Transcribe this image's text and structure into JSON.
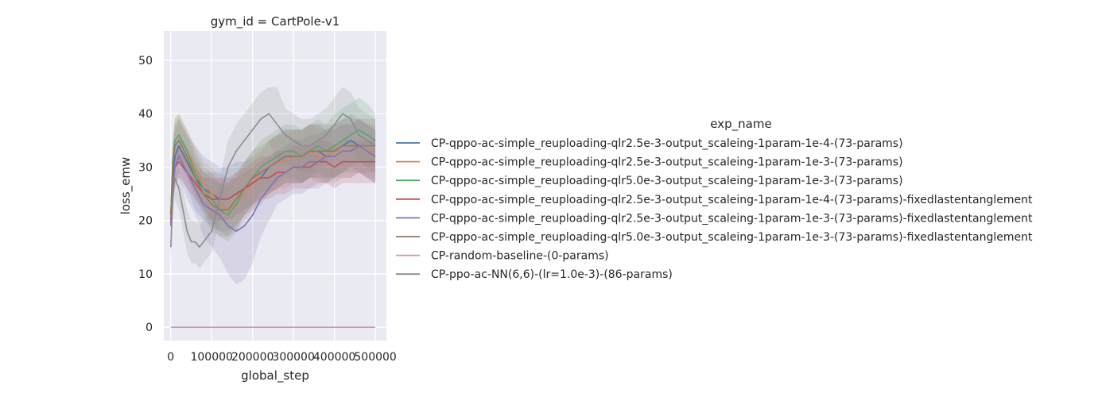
{
  "chart_data": {
    "type": "line",
    "title": "gym_id = CartPole-v1",
    "xlabel": "global_step",
    "ylabel": "loss_emw",
    "xlim": [
      -17000,
      527000
    ],
    "ylim": [
      -2.5,
      55.5
    ],
    "x_ticks": [
      0,
      100000,
      200000,
      300000,
      400000,
      500000
    ],
    "y_ticks": [
      0,
      10,
      20,
      30,
      40,
      50
    ],
    "grid": true,
    "legend": {
      "title": "exp_name",
      "position": "right"
    },
    "series": [
      {
        "name": "CP-qppo-ac-simple_reuploading-qlr2.5e-3-output_scaleing-1param-1e-4-(73-params)",
        "color": "#4c72b0",
        "x": [
          0,
          5000,
          10000,
          20000,
          40000,
          60000,
          80000,
          100000,
          120000,
          140000,
          160000,
          180000,
          200000,
          220000,
          240000,
          260000,
          280000,
          300000,
          320000,
          340000,
          360000,
          380000,
          400000,
          420000,
          440000,
          460000,
          480000,
          500000
        ],
        "values": [
          19,
          28,
          32,
          34,
          31,
          28,
          26,
          25,
          24,
          24,
          25,
          26,
          27,
          28,
          30,
          31,
          32,
          32,
          32,
          33,
          33,
          32,
          33,
          34,
          35,
          34,
          33,
          32
        ],
        "band": [
          5,
          5,
          5,
          5,
          5,
          6,
          6,
          6,
          6,
          6,
          6,
          5,
          5,
          5,
          5,
          5,
          5,
          5,
          5,
          5,
          5,
          5,
          5,
          5,
          5,
          5,
          5,
          5
        ]
      },
      {
        "name": "CP-qppo-ac-simple_reuploading-qlr2.5e-3-output_scaleing-1param-1e-3-(73-params)",
        "color": "#dd8452",
        "x": [
          0,
          5000,
          10000,
          20000,
          40000,
          60000,
          80000,
          100000,
          120000,
          140000,
          160000,
          180000,
          200000,
          220000,
          240000,
          260000,
          280000,
          300000,
          320000,
          340000,
          360000,
          380000,
          400000,
          420000,
          440000,
          460000,
          480000,
          500000
        ],
        "values": [
          21,
          30,
          35,
          36,
          33,
          30,
          27,
          25,
          23,
          22,
          23,
          25,
          27,
          29,
          30,
          31,
          31,
          32,
          32,
          33,
          32,
          32,
          33,
          33,
          33,
          34,
          33,
          33
        ],
        "band": [
          4,
          4,
          4,
          4,
          4,
          4,
          4,
          5,
          5,
          5,
          5,
          5,
          5,
          5,
          5,
          5,
          5,
          5,
          5,
          5,
          5,
          5,
          5,
          5,
          5,
          5,
          5,
          5
        ]
      },
      {
        "name": "CP-qppo-ac-simple_reuploading-qlr5.0e-3-output_scaleing-1param-1e-3-(73-params)",
        "color": "#55a868",
        "x": [
          0,
          5000,
          10000,
          20000,
          40000,
          60000,
          80000,
          100000,
          120000,
          140000,
          160000,
          180000,
          200000,
          220000,
          240000,
          260000,
          280000,
          300000,
          320000,
          340000,
          360000,
          380000,
          400000,
          420000,
          440000,
          460000,
          480000,
          500000
        ],
        "values": [
          21,
          31,
          35,
          36,
          33,
          29,
          26,
          24,
          22,
          21,
          23,
          26,
          28,
          30,
          31,
          32,
          33,
          33,
          32,
          33,
          34,
          33,
          34,
          35,
          36,
          37,
          36,
          35
        ],
        "band": [
          4,
          4,
          4,
          4,
          4,
          4,
          4,
          5,
          5,
          5,
          5,
          5,
          5,
          5,
          5,
          5,
          5,
          5,
          5,
          5,
          5,
          5,
          6,
          6,
          6,
          6,
          6,
          5
        ]
      },
      {
        "name": "CP-qppo-ac-simple_reuploading-qlr2.5e-3-output_scaleing-1param-1e-4-(73-params)-fixedlastentanglement",
        "color": "#c44e52",
        "x": [
          0,
          5000,
          10000,
          20000,
          40000,
          60000,
          80000,
          100000,
          120000,
          140000,
          160000,
          180000,
          200000,
          220000,
          240000,
          260000,
          280000,
          300000,
          320000,
          340000,
          360000,
          380000,
          400000,
          420000,
          440000,
          460000,
          480000,
          500000
        ],
        "values": [
          20,
          27,
          30,
          31,
          29,
          27,
          25,
          24,
          24,
          24,
          25,
          26,
          27,
          28,
          28,
          29,
          29,
          30,
          30,
          30,
          31,
          31,
          30,
          31,
          31,
          31,
          31,
          31
        ],
        "band": [
          3,
          3,
          3,
          3,
          3,
          3,
          3,
          4,
          4,
          4,
          4,
          4,
          4,
          4,
          4,
          4,
          4,
          4,
          4,
          4,
          4,
          4,
          4,
          4,
          4,
          4,
          4,
          4
        ]
      },
      {
        "name": "CP-qppo-ac-simple_reuploading-qlr2.5e-3-output_scaleing-1param-1e-3-(73-params)-fixedlastentanglement",
        "color": "#8172b3",
        "x": [
          0,
          5000,
          10000,
          20000,
          40000,
          60000,
          80000,
          100000,
          120000,
          140000,
          160000,
          180000,
          200000,
          220000,
          240000,
          260000,
          280000,
          300000,
          320000,
          340000,
          360000,
          380000,
          400000,
          420000,
          440000,
          460000,
          480000,
          500000
        ],
        "values": [
          19,
          26,
          30,
          32,
          29,
          26,
          23,
          22,
          21,
          19,
          18,
          19,
          21,
          24,
          26,
          28,
          29,
          30,
          30,
          31,
          31,
          32,
          32,
          33,
          33,
          34,
          33,
          32
        ],
        "band": [
          4,
          4,
          4,
          4,
          5,
          5,
          6,
          7,
          8,
          9,
          10,
          10,
          9,
          7,
          6,
          5,
          5,
          5,
          5,
          5,
          5,
          5,
          5,
          5,
          5,
          5,
          5,
          5
        ]
      },
      {
        "name": "CP-qppo-ac-simple_reuploading-qlr5.0e-3-output_scaleing-1param-1e-3-(73-params)-fixedlastentanglement",
        "color": "#937860",
        "x": [
          0,
          5000,
          10000,
          20000,
          40000,
          60000,
          80000,
          100000,
          120000,
          140000,
          160000,
          180000,
          200000,
          220000,
          240000,
          260000,
          280000,
          300000,
          320000,
          340000,
          360000,
          380000,
          400000,
          420000,
          440000,
          460000,
          480000,
          500000
        ],
        "values": [
          21,
          31,
          34,
          35,
          32,
          28,
          25,
          23,
          22,
          22,
          24,
          26,
          28,
          29,
          30,
          31,
          32,
          32,
          32,
          33,
          33,
          33,
          33,
          34,
          34,
          34,
          34,
          34
        ],
        "band": [
          4,
          4,
          4,
          4,
          4,
          4,
          4,
          5,
          5,
          5,
          5,
          5,
          5,
          5,
          5,
          5,
          5,
          5,
          5,
          5,
          5,
          5,
          5,
          5,
          5,
          5,
          5,
          5
        ]
      },
      {
        "name": "CP-random-baseline-(0-params)",
        "color": "#da8bc3",
        "x": [
          0,
          500000
        ],
        "values": [
          0,
          0
        ],
        "band": [
          0,
          0
        ]
      },
      {
        "name": "CP-ppo-ac-NN(6,6)-(lr=1.0e-3)-(86-params)",
        "color": "#8c8c8c",
        "x": [
          0,
          5000,
          10000,
          20000,
          30000,
          40000,
          50000,
          60000,
          70000,
          80000,
          100000,
          120000,
          140000,
          160000,
          180000,
          200000,
          220000,
          240000,
          260000,
          280000,
          300000,
          320000,
          340000,
          360000,
          380000,
          400000,
          420000,
          440000,
          460000,
          480000,
          500000
        ],
        "values": [
          15,
          24,
          28,
          26,
          22,
          18,
          16,
          16,
          15,
          16,
          18,
          24,
          30,
          33,
          35,
          37,
          39,
          40,
          38,
          36,
          35,
          34,
          34,
          35,
          36,
          38,
          40,
          39,
          36,
          35,
          34
        ],
        "band": [
          3,
          4,
          4,
          4,
          4,
          4,
          4,
          4,
          4,
          4,
          4,
          4,
          5,
          5,
          5,
          5,
          5,
          5,
          7,
          5,
          5,
          5,
          5,
          5,
          5,
          5,
          5,
          5,
          5,
          5,
          5
        ]
      }
    ]
  }
}
